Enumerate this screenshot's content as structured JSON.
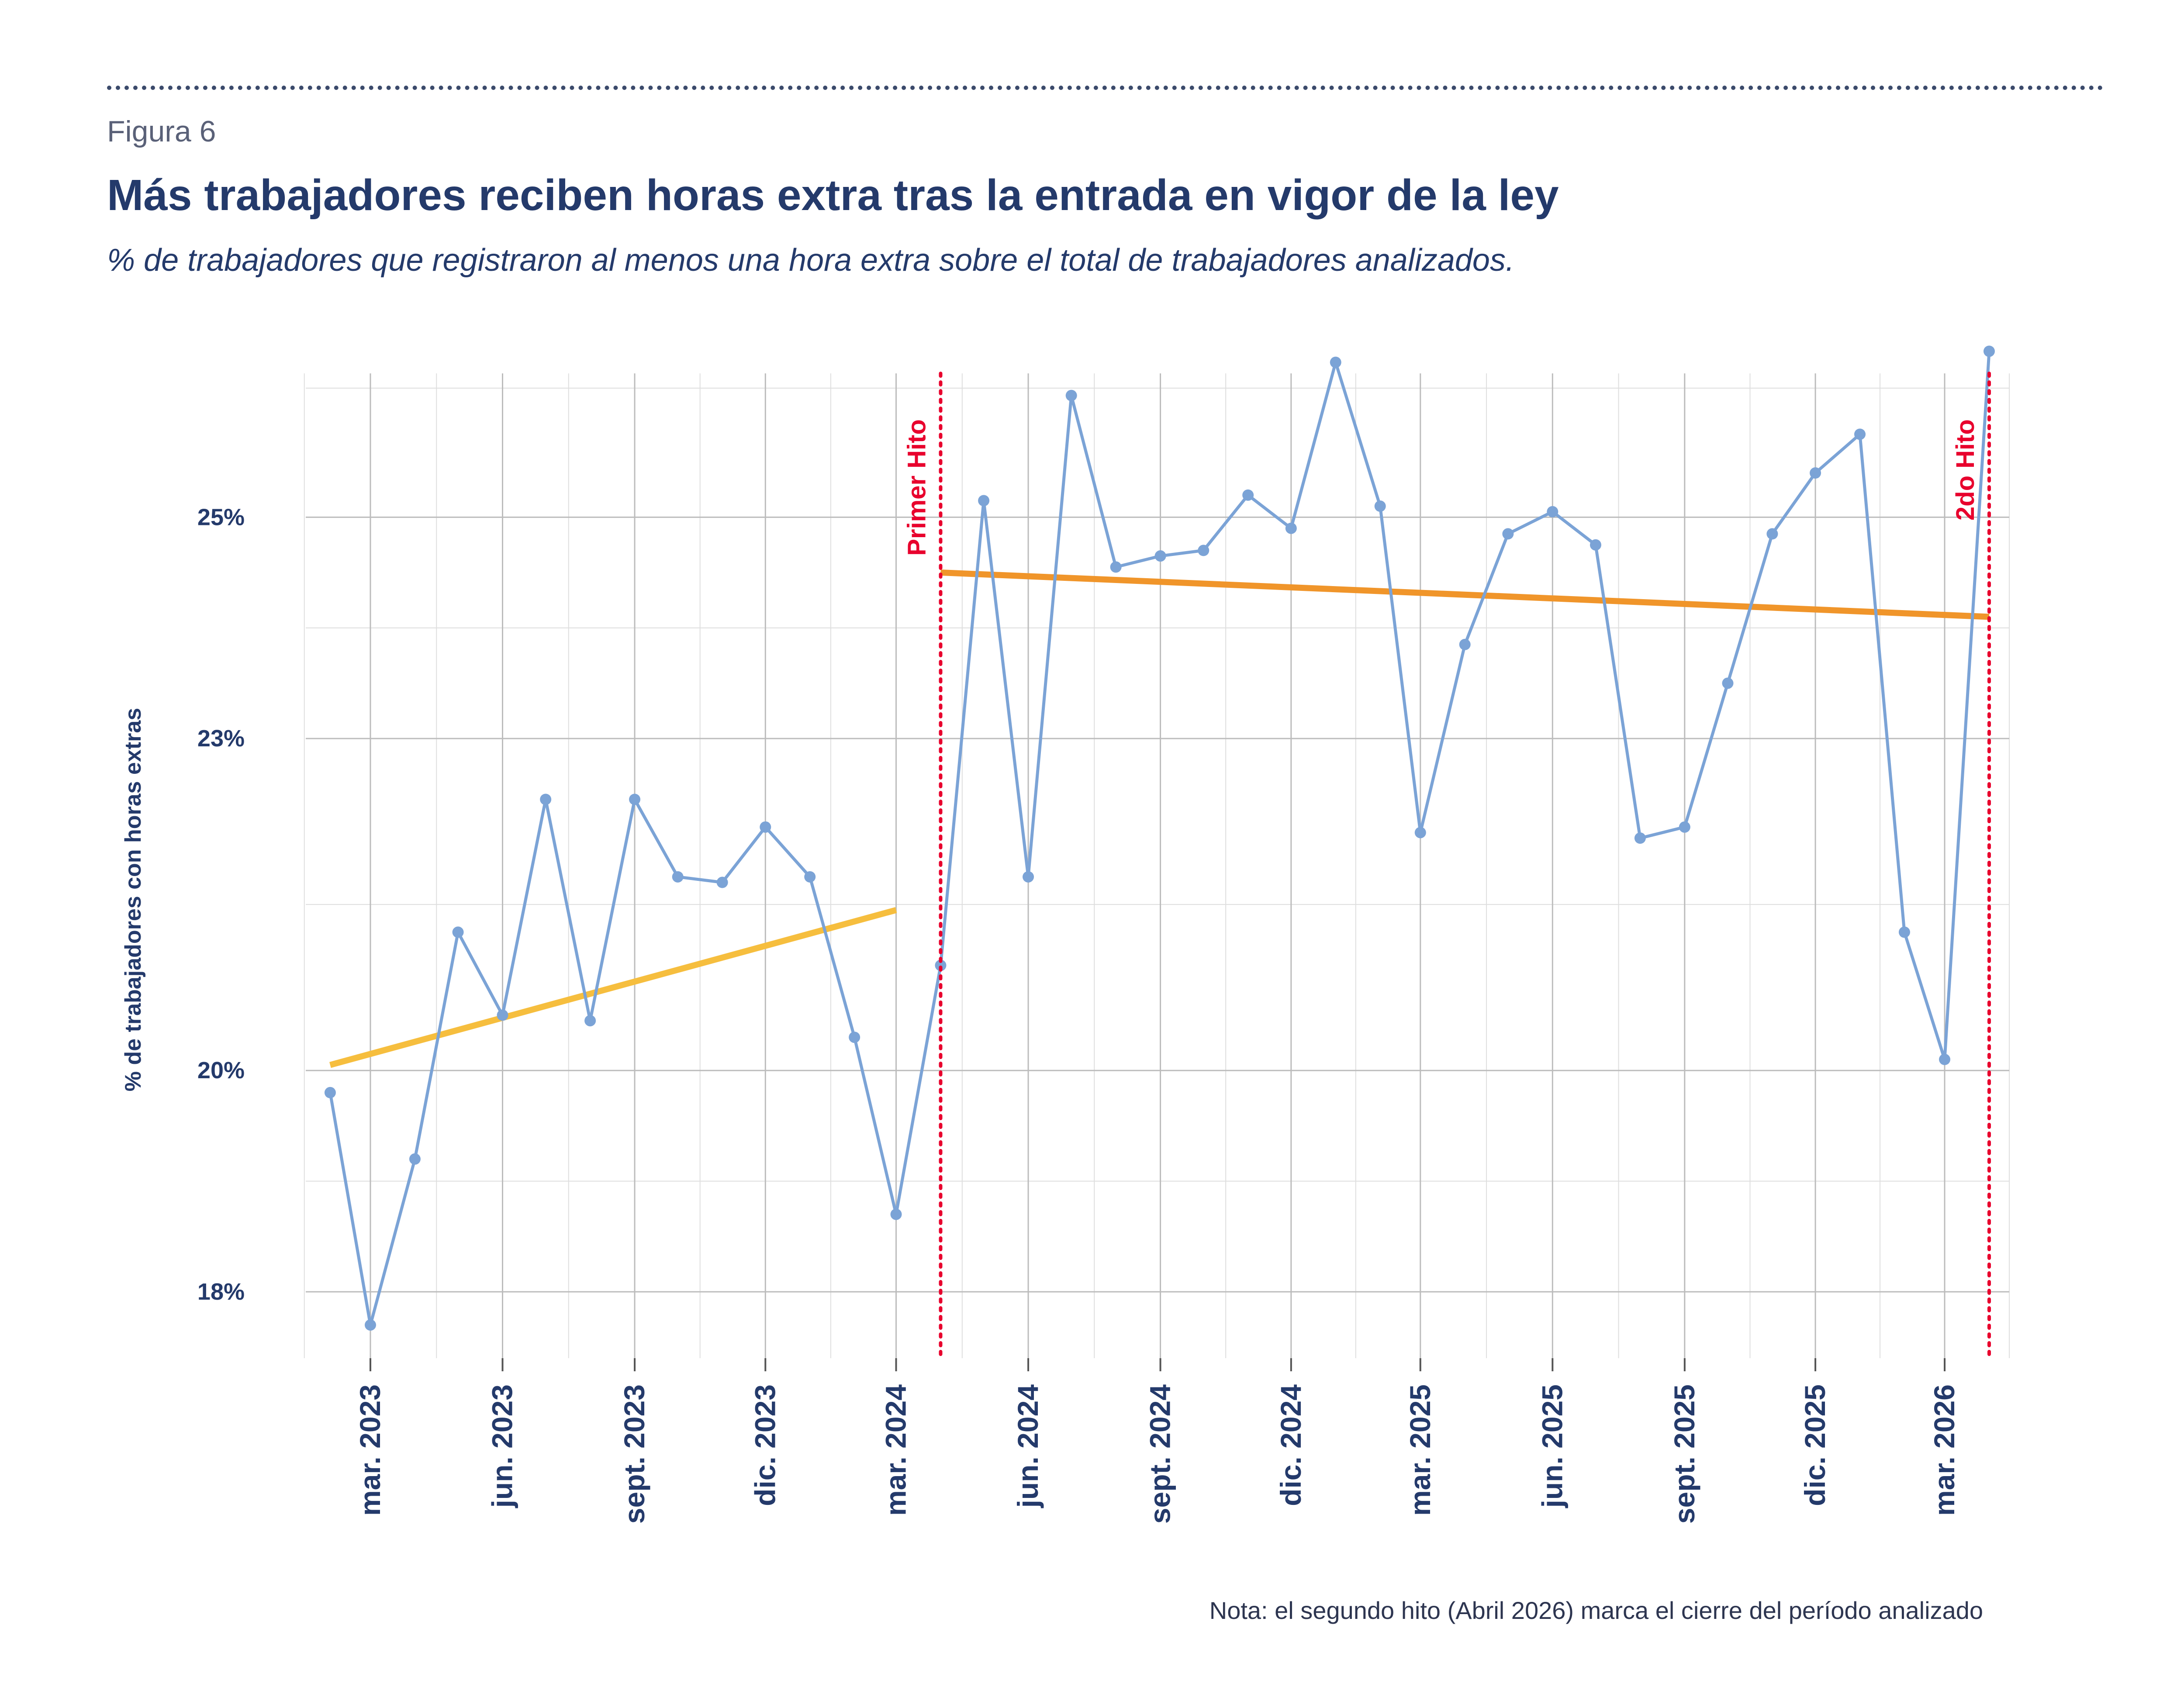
{
  "header": {
    "figure_label": "Figura 6",
    "title": "Más trabajadores reciben horas extra tras la entrada en vigor de la ley",
    "subtitle": "% de trabajadores que registraron al menos una hora extra sobre el total de trabajadores analizados."
  },
  "note": "Nota: el segundo hito (Abril 2026) marca el cierre del período analizado",
  "colors": {
    "series": "#7ba3d6",
    "trend_before": "#f6be3e",
    "trend_after": "#f0952a",
    "milestone": "#e8002d",
    "text": "#243a6b",
    "grid": "#c8c8c8"
  },
  "chart_data": {
    "type": "line",
    "xlabel": "",
    "ylabel": "% de trabajadores con horas extras",
    "y_ticks": [
      {
        "value": 18,
        "label": "18%"
      },
      {
        "value": 20,
        "label": "20%"
      },
      {
        "value": 23,
        "label": "23%"
      },
      {
        "value": 25,
        "label": "25%"
      }
    ],
    "x_ticks": [
      {
        "date": "2023-03",
        "label": "mar. 2023"
      },
      {
        "date": "2023-06",
        "label": "jun. 2023"
      },
      {
        "date": "2023-09",
        "label": "sept. 2023"
      },
      {
        "date": "2023-12",
        "label": "dic. 2023"
      },
      {
        "date": "2024-03",
        "label": "mar. 2024"
      },
      {
        "date": "2024-06",
        "label": "jun. 2024"
      },
      {
        "date": "2024-09",
        "label": "sept. 2024"
      },
      {
        "date": "2024-12",
        "label": "dic. 2024"
      },
      {
        "date": "2025-03",
        "label": "mar. 2025"
      },
      {
        "date": "2025-06",
        "label": "jun. 2025"
      },
      {
        "date": "2025-09",
        "label": "sept. 2025"
      },
      {
        "date": "2025-12",
        "label": "dic. 2025"
      },
      {
        "date": "2026-03",
        "label": "mar. 2026"
      }
    ],
    "x_range": [
      "2023-01-15",
      "2026-04-15"
    ],
    "y_range": [
      17.4,
      26.3
    ],
    "series": [
      {
        "points": [
          {
            "x": "2023-02-01",
            "y": 19.8
          },
          {
            "x": "2023-03-01",
            "y": 17.7
          },
          {
            "x": "2023-04-01",
            "y": 19.2
          },
          {
            "x": "2023-05-01",
            "y": 21.25
          },
          {
            "x": "2023-06-01",
            "y": 20.5
          },
          {
            "x": "2023-07-01",
            "y": 22.45
          },
          {
            "x": "2023-08-01",
            "y": 20.45
          },
          {
            "x": "2023-09-01",
            "y": 22.45
          },
          {
            "x": "2023-10-01",
            "y": 21.75
          },
          {
            "x": "2023-11-01",
            "y": 21.7
          },
          {
            "x": "2023-12-01",
            "y": 22.2
          },
          {
            "x": "2024-01-01",
            "y": 21.75
          },
          {
            "x": "2024-02-01",
            "y": 20.3
          },
          {
            "x": "2024-03-01",
            "y": 18.7
          },
          {
            "x": "2024-04-01",
            "y": 20.95
          },
          {
            "x": "2024-05-01",
            "y": 25.15
          },
          {
            "x": "2024-06-01",
            "y": 21.75
          },
          {
            "x": "2024-07-01",
            "y": 26.1
          },
          {
            "x": "2024-08-01",
            "y": 24.55
          },
          {
            "x": "2024-09-01",
            "y": 24.65
          },
          {
            "x": "2024-10-01",
            "y": 24.7
          },
          {
            "x": "2024-11-01",
            "y": 25.2
          },
          {
            "x": "2024-12-01",
            "y": 24.9
          },
          {
            "x": "2025-01-01",
            "y": 26.4
          },
          {
            "x": "2025-02-01",
            "y": 25.1
          },
          {
            "x": "2025-03-01",
            "y": 22.15
          },
          {
            "x": "2025-04-01",
            "y": 23.85
          },
          {
            "x": "2025-05-01",
            "y": 24.85
          },
          {
            "x": "2025-06-01",
            "y": 25.05
          },
          {
            "x": "2025-07-01",
            "y": 24.75
          },
          {
            "x": "2025-08-01",
            "y": 22.1
          },
          {
            "x": "2025-09-01",
            "y": 22.2
          },
          {
            "x": "2025-10-01",
            "y": 23.5
          },
          {
            "x": "2025-11-01",
            "y": 24.85
          },
          {
            "x": "2025-12-01",
            "y": 25.4
          },
          {
            "x": "2026-01-01",
            "y": 25.75
          },
          {
            "x": "2026-02-01",
            "y": 21.25
          },
          {
            "x": "2026-03-01",
            "y": 20.1
          },
          {
            "x": "2026-04-01",
            "y": 26.5
          }
        ]
      }
    ],
    "trend_lines": [
      {
        "from": {
          "x": "2023-02-01",
          "y": 20.05
        },
        "to": {
          "x": "2024-03-01",
          "y": 21.45
        }
      },
      {
        "from": {
          "x": "2024-04-01",
          "y": 24.5
        },
        "to": {
          "x": "2026-04-01",
          "y": 24.1
        }
      }
    ],
    "milestones": [
      {
        "x": "2024-04-01",
        "label": "Primer Hito"
      },
      {
        "x": "2026-04-01",
        "label": "2do Hito"
      }
    ]
  }
}
